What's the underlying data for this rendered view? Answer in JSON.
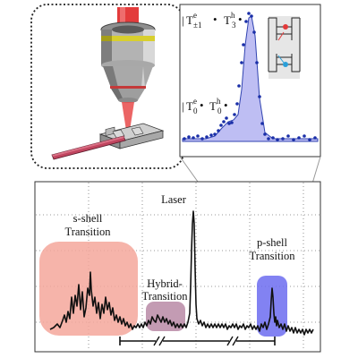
{
  "labels": {
    "s_shell_line1": "s-shell",
    "s_shell_line2": "Transition",
    "hybrid_line1": "Hybrid-",
    "hybrid_line2": "Transition",
    "laser": "Laser",
    "p_shell_line1": "p-shell",
    "p_shell_line2": "Transition"
  },
  "inset_kets": {
    "upper_T": "T",
    "upper_e_sup": "e",
    "upper_e_sub": "±1",
    "upper_h_T": "T",
    "upper_h_sup": "h",
    "upper_h_sub": "3",
    "lower_T": "T",
    "lower_e_sup": "e",
    "lower_e_sub": "0",
    "lower_h_T": "T",
    "lower_h_sup": "h",
    "lower_h_sub": "0"
  },
  "colors": {
    "s_shell_fill": "#f4a79b",
    "hybrid_fill": "#b98aa6",
    "p_shell_fill": "#6c6cf0",
    "inset_fit_fill": "#b8b8f2",
    "inset_points": "#1a2fa8",
    "laser_beam": "#e33b3b",
    "waveguide": "#c0455f",
    "electron_dot": "#e23a3a",
    "hole_dot": "#2b9fd8"
  }
}
